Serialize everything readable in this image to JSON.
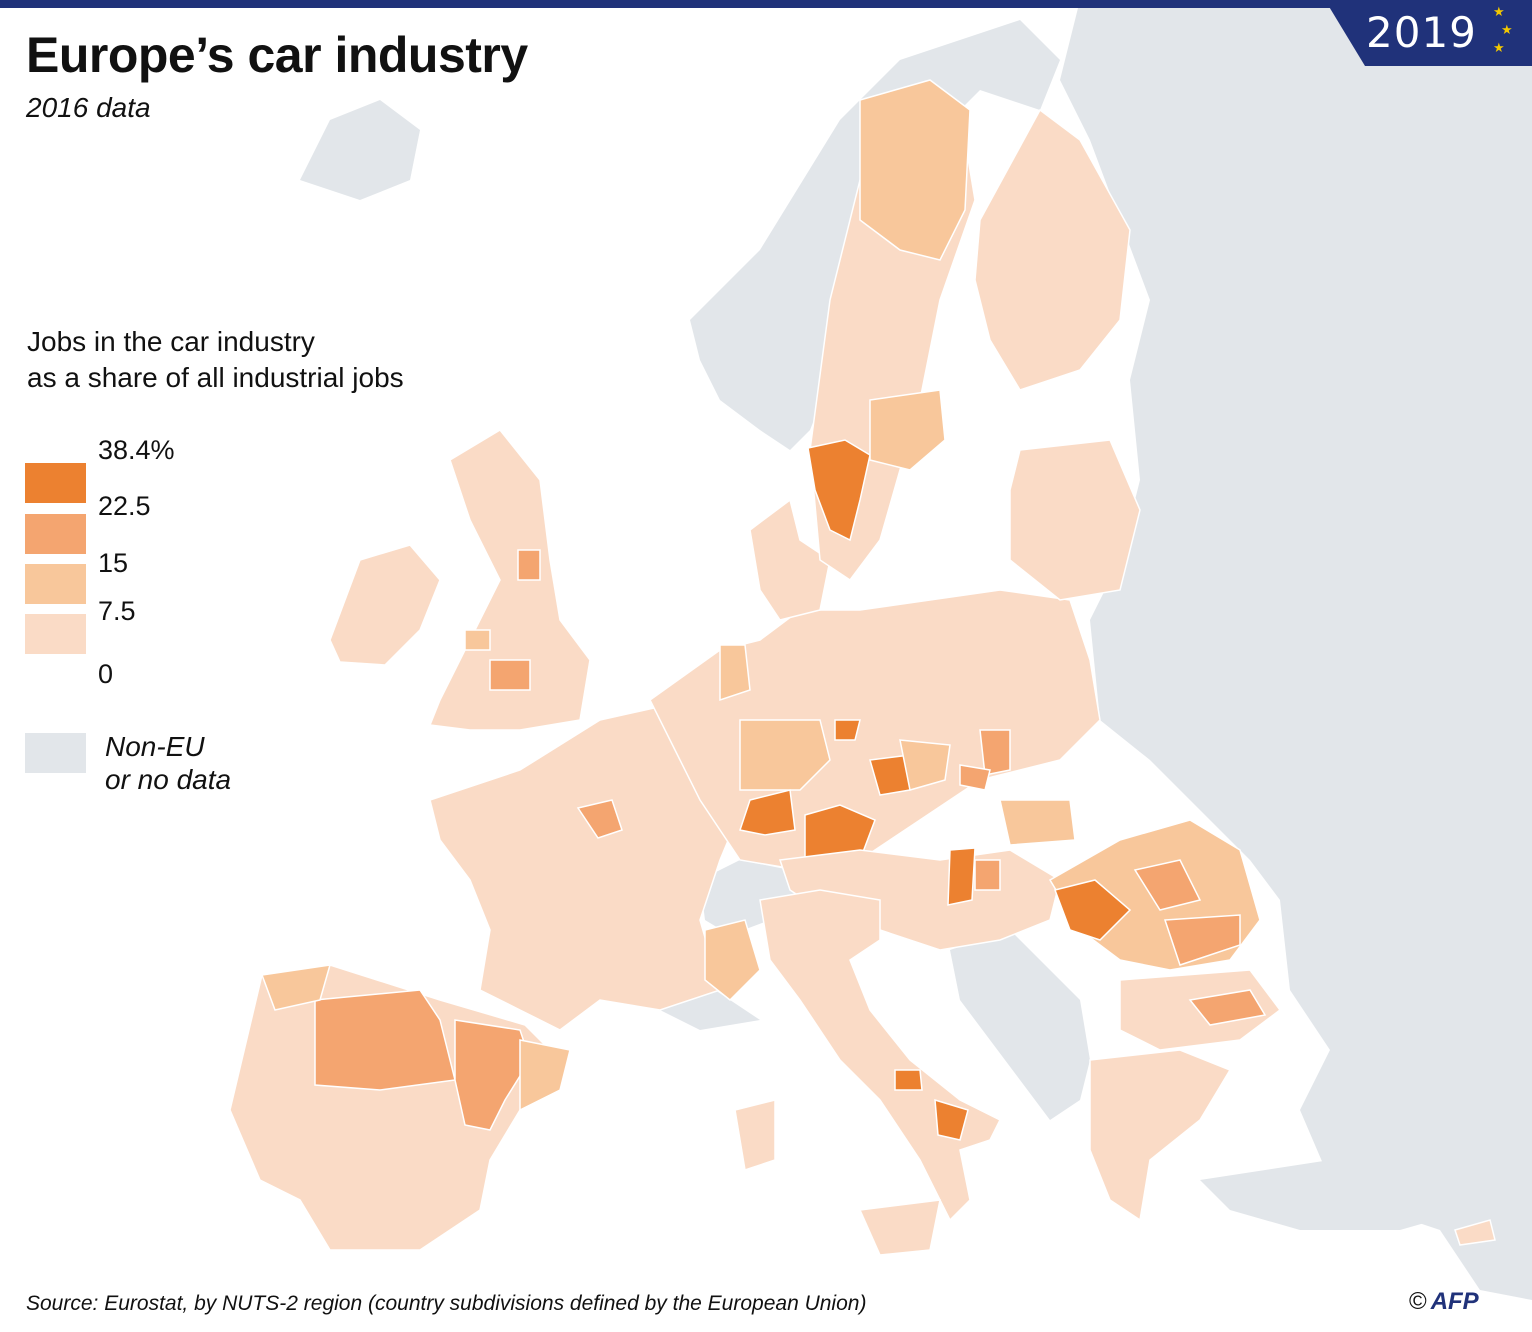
{
  "header": {
    "title": "Europe’s car industry",
    "subtitle": "2016 data",
    "badge_year": "2019"
  },
  "legend": {
    "title_line1": "Jobs in the car industry",
    "title_line2": "as a share of all industrial jobs",
    "ticks": [
      "38.4%",
      "22.5",
      "15",
      "7.5",
      "0"
    ],
    "colors": [
      "#ec8130",
      "#f4a570",
      "#f8c79b",
      "#fadbc6"
    ],
    "no_data_color": "#e2e6ea",
    "no_data_line1": "Non-EU",
    "no_data_line2": "or no data"
  },
  "footer": {
    "source": "Source: Eurostat, by NUTS-2 region (country subdivisions defined by the European Union)",
    "copyright_symbol": "©",
    "agency": "AFP"
  }
}
